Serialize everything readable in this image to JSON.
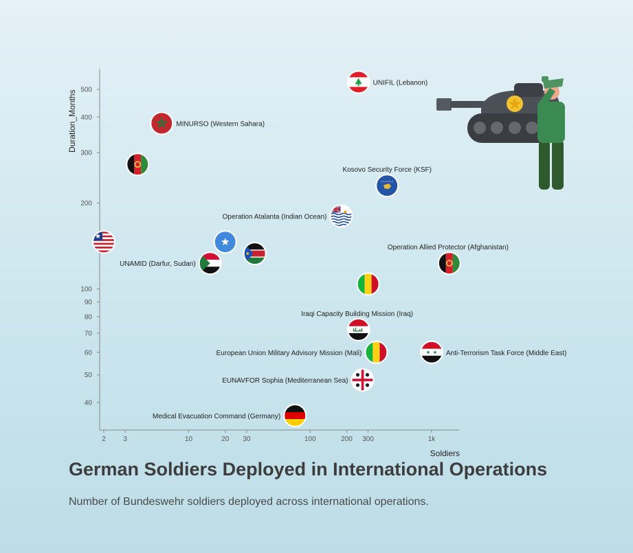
{
  "title": "German Soldiers Deployed in International Operations",
  "subtitle": "Number of Bundeswehr soldiers deployed across international operations.",
  "chart_data": {
    "type": "scatter",
    "xlabel": "Soldiers",
    "ylabel": "Duration_Months",
    "xscale": "log",
    "yscale": "log",
    "xlim": [
      1.8,
      2200
    ],
    "ylim": [
      33,
      600
    ],
    "x_ticks": [
      {
        "value": 2,
        "label": "2"
      },
      {
        "value": 3,
        "label": "3"
      },
      {
        "value": 10,
        "label": "10"
      },
      {
        "value": 20,
        "label": "20"
      },
      {
        "value": 30,
        "label": "30"
      },
      {
        "value": 100,
        "label": "100"
      },
      {
        "value": 200,
        "label": "200"
      },
      {
        "value": 300,
        "label": "300"
      },
      {
        "value": 1000,
        "label": "1k"
      }
    ],
    "y_ticks": [
      {
        "value": 40,
        "label": "40"
      },
      {
        "value": 50,
        "label": "50"
      },
      {
        "value": 60,
        "label": "60"
      },
      {
        "value": 70,
        "label": "70"
      },
      {
        "value": 80,
        "label": "80"
      },
      {
        "value": 90,
        "label": "90"
      },
      {
        "value": 100,
        "label": "100"
      },
      {
        "value": 200,
        "label": "200"
      },
      {
        "value": 300,
        "label": "300"
      },
      {
        "value": 400,
        "label": "400"
      },
      {
        "value": 500,
        "label": "500"
      }
    ],
    "grid": false,
    "legend": "none",
    "points": [
      {
        "label": "UNIFIL (Lebanon)",
        "flag": "lebanon",
        "x": 250,
        "y": 530,
        "label_pos": "right"
      },
      {
        "label": "MINURSO (Western Sahara)",
        "flag": "morocco",
        "x": 6,
        "y": 380,
        "label_pos": "right"
      },
      {
        "label": "",
        "flag": "afghanistan",
        "x": 3.8,
        "y": 273,
        "label_pos": "none"
      },
      {
        "label": "Kosovo Security Force (KSF)",
        "flag": "kosovo",
        "x": 430,
        "y": 230,
        "label_pos": "above"
      },
      {
        "label": "Operation Atalanta (Indian Ocean)",
        "flag": "biot",
        "x": 180,
        "y": 180,
        "label_pos": "left"
      },
      {
        "label": "",
        "flag": "liberia",
        "x": 2,
        "y": 146,
        "label_pos": "none"
      },
      {
        "label": "",
        "flag": "somalia",
        "x": 20,
        "y": 146,
        "label_pos": "none"
      },
      {
        "label": "",
        "flag": "south-sudan",
        "x": 35,
        "y": 133,
        "label_pos": "none"
      },
      {
        "label": "UNAMID (Darfur, Sudan)",
        "flag": "sudan",
        "x": 15,
        "y": 123,
        "label_pos": "left"
      },
      {
        "label": "Operation Allied Protector (Afghanistan)",
        "flag": "afghanistan",
        "x": 1400,
        "y": 123,
        "label_pos": "above-left"
      },
      {
        "label": "",
        "flag": "mali",
        "x": 300,
        "y": 104,
        "label_pos": "none"
      },
      {
        "label": "Iraqi Capacity Building Mission (Iraq)",
        "flag": "iraq",
        "x": 250,
        "y": 72,
        "label_pos": "above-left"
      },
      {
        "label": "European Union Military Advisory Mission (Mali)",
        "flag": "mali",
        "x": 350,
        "y": 60,
        "label_pos": "left"
      },
      {
        "label": "Anti-Terrorism Task Force (Middle East)",
        "flag": "syria",
        "x": 1000,
        "y": 60,
        "label_pos": "right"
      },
      {
        "label": "EUNAVFOR Sophia (Mediterranean Sea)",
        "flag": "sardinia",
        "x": 270,
        "y": 48,
        "label_pos": "left"
      },
      {
        "label": "Medical Evacuation Command (Germany)",
        "flag": "germany",
        "x": 75,
        "y": 36,
        "label_pos": "left"
      }
    ]
  }
}
